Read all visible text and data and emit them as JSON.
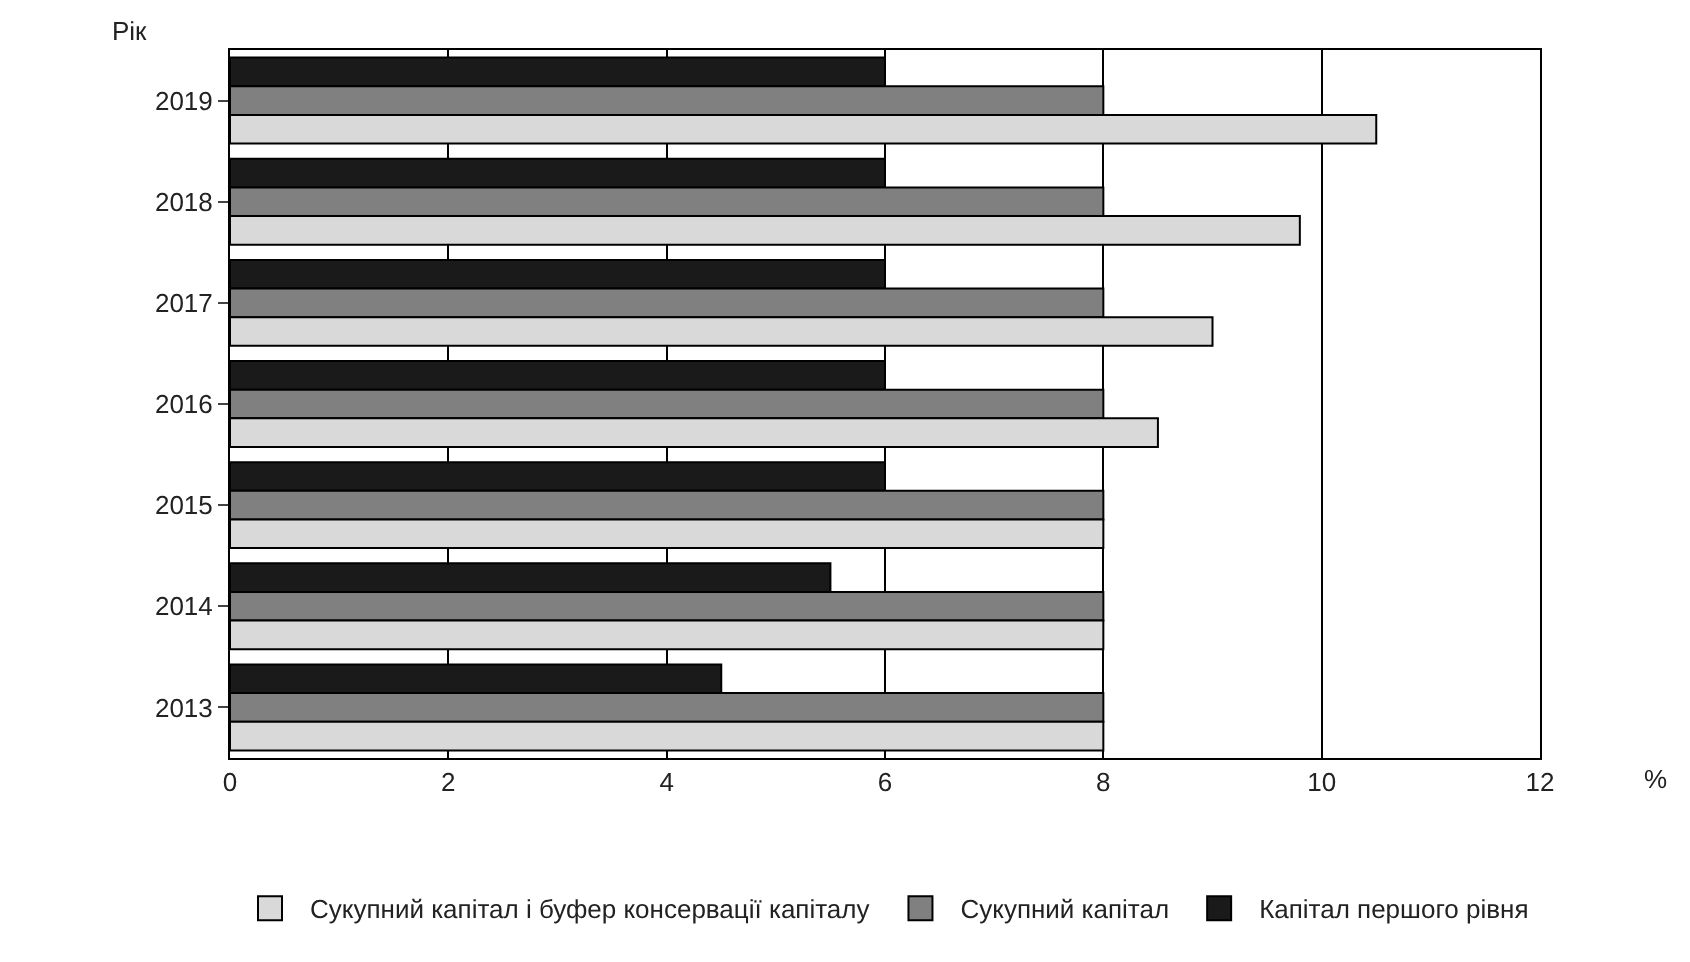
{
  "chart_data": {
    "type": "bar",
    "orientation": "horizontal",
    "xlabel": "%",
    "ylabel": "Рік",
    "categories": [
      "2019",
      "2018",
      "2017",
      "2016",
      "2015",
      "2014",
      "2013"
    ],
    "series": [
      {
        "name": "Сукупний капітал і буфер консервації капіталу",
        "color": "#d9d9d9",
        "values": [
          10.5,
          9.8,
          9,
          8.5,
          8,
          8,
          8
        ]
      },
      {
        "name": "Сукупний капітал",
        "color": "#808080",
        "values": [
          8,
          8,
          8,
          8,
          8,
          8,
          8
        ]
      },
      {
        "name": "Капітал першого рівня",
        "color": "#1a1a1a",
        "values": [
          6,
          6,
          6,
          6,
          6,
          5.5,
          4.5
        ]
      }
    ],
    "xlim": [
      0,
      12
    ],
    "xticks": [
      0,
      2,
      4,
      6,
      8,
      10,
      12
    ],
    "grid": "x",
    "legend": "bottom"
  }
}
